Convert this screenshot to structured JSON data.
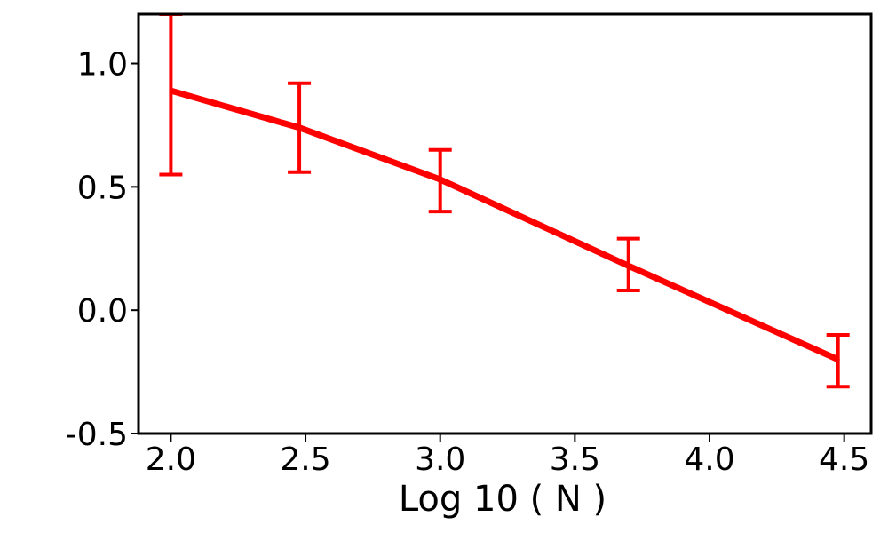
{
  "chart_data": {
    "type": "line",
    "title": "",
    "xlabel": "Log 10 ( N )",
    "ylabel": "",
    "xlim": [
      1.88,
      4.6
    ],
    "ylim": [
      -0.5,
      1.2
    ],
    "grid": false,
    "x_ticks": [
      2.0,
      2.5,
      3.0,
      3.5,
      4.0,
      4.5
    ],
    "x_tick_labels": [
      "2.0",
      "2.5",
      "3.0",
      "3.5",
      "4.0",
      "4.5"
    ],
    "y_ticks": [
      -0.5,
      0.0,
      0.5,
      1.0
    ],
    "y_tick_labels": [
      "-0.5",
      "0.0",
      "0.5",
      "1.0"
    ],
    "series": [
      {
        "color": "#ff0000",
        "x": [
          2.0,
          2.477,
          3.0,
          3.699,
          4.477
        ],
        "y": [
          0.89,
          0.74,
          0.53,
          0.18,
          -0.2
        ],
        "err_lower": [
          0.55,
          0.56,
          0.4,
          0.08,
          -0.31
        ],
        "err_upper": [
          1.2,
          0.92,
          0.65,
          0.29,
          -0.1
        ]
      }
    ]
  }
}
